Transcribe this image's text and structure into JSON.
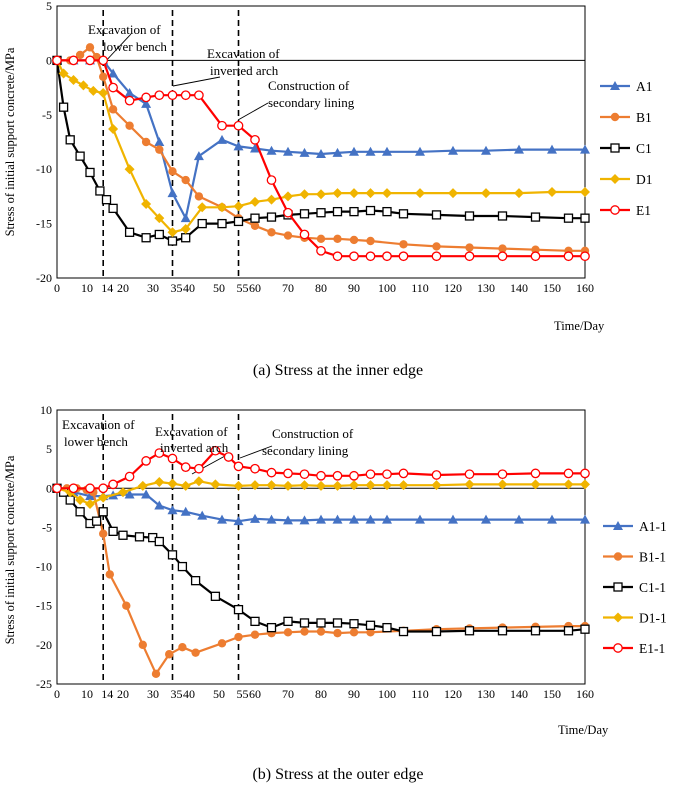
{
  "colors": {
    "A": "#4472C4",
    "B": "#ED7D31",
    "C": "#000000",
    "D": "#F0B400",
    "E": "#FF0000"
  },
  "chart_data": [
    {
      "type": "line",
      "caption": "(a) Stress at the inner edge",
      "ylabel": "Stress of initial support concrete/MPa",
      "xlabel": "Time/Day",
      "xlim": [
        0,
        160
      ],
      "ylim": [
        -20,
        5
      ],
      "xticks": [
        0,
        10,
        14,
        20,
        30,
        35,
        40,
        50,
        55,
        60,
        70,
        80,
        90,
        100,
        110,
        120,
        130,
        140,
        150,
        160
      ],
      "xtick_labels": [
        "0",
        "10",
        "14",
        "20",
        "30",
        "35",
        "40",
        "50",
        "55",
        "60",
        "70",
        "80",
        "90",
        "100",
        "110",
        "120",
        "130",
        "140",
        "150",
        "160"
      ],
      "yticks": [
        5,
        0,
        -5,
        -10,
        -15,
        -20
      ],
      "grid": false,
      "legend": "right",
      "vlines": [
        14,
        35,
        55
      ],
      "annotations": [
        {
          "lines": [
            "Excavation of",
            "lower bench"
          ]
        },
        {
          "lines": [
            "Excavation of",
            "inverted arch"
          ]
        },
        {
          "lines": [
            "Construction of",
            "secondary lining"
          ]
        }
      ],
      "series": [
        {
          "name": "A1",
          "color_key": "A",
          "marker": "triangle",
          "x": [
            0,
            5,
            10,
            14,
            17,
            22,
            27,
            31,
            35,
            39,
            43,
            50,
            55,
            60,
            65,
            70,
            75,
            80,
            85,
            90,
            95,
            100,
            110,
            120,
            130,
            140,
            150,
            160
          ],
          "y": [
            0,
            0,
            0,
            0,
            -1.2,
            -3.0,
            -4.0,
            -7.5,
            -12.2,
            -14.5,
            -8.8,
            -7.3,
            -7.9,
            -8.1,
            -8.3,
            -8.4,
            -8.5,
            -8.6,
            -8.5,
            -8.4,
            -8.4,
            -8.4,
            -8.4,
            -8.3,
            -8.3,
            -8.2,
            -8.2,
            -8.2
          ]
        },
        {
          "name": "B1",
          "color_key": "B",
          "marker": "circle",
          "x": [
            0,
            4,
            7,
            10,
            12,
            14,
            17,
            22,
            27,
            31,
            35,
            39,
            43,
            50,
            55,
            60,
            65,
            70,
            75,
            80,
            85,
            90,
            95,
            105,
            115,
            125,
            135,
            145,
            155,
            160
          ],
          "y": [
            0,
            0,
            0.5,
            1.2,
            0.3,
            -1.5,
            -4.5,
            -6.0,
            -7.5,
            -8.2,
            -10.2,
            -11.0,
            -12.5,
            -13.5,
            -14.5,
            -15.2,
            -15.8,
            -16.1,
            -16.3,
            -16.4,
            -16.4,
            -16.5,
            -16.6,
            -16.9,
            -17.1,
            -17.2,
            -17.3,
            -17.4,
            -17.5,
            -17.5
          ]
        },
        {
          "name": "C1",
          "color_key": "C",
          "marker": "square",
          "x": [
            0,
            2,
            4,
            7,
            10,
            13,
            15,
            17,
            22,
            27,
            31,
            35,
            39,
            44,
            50,
            55,
            60,
            65,
            70,
            75,
            80,
            85,
            90,
            95,
            100,
            105,
            115,
            125,
            135,
            145,
            155,
            160
          ],
          "y": [
            0,
            -4.3,
            -7.3,
            -8.8,
            -10.3,
            -12.0,
            -12.8,
            -13.6,
            -15.8,
            -16.3,
            -16.0,
            -16.6,
            -16.3,
            -15.0,
            -15.0,
            -14.8,
            -14.5,
            -14.4,
            -14.2,
            -14.1,
            -14.0,
            -13.9,
            -13.9,
            -13.8,
            -13.9,
            -14.1,
            -14.2,
            -14.3,
            -14.3,
            -14.4,
            -14.5,
            -14.5
          ]
        },
        {
          "name": "D1",
          "color_key": "D",
          "marker": "diamond",
          "x": [
            0,
            2,
            5,
            8,
            11,
            14,
            17,
            22,
            27,
            31,
            35,
            39,
            44,
            50,
            55,
            60,
            65,
            70,
            75,
            80,
            85,
            90,
            95,
            100,
            110,
            120,
            130,
            140,
            150,
            160
          ],
          "y": [
            0,
            -1.2,
            -1.8,
            -2.3,
            -2.8,
            -3.0,
            -6.3,
            -10.0,
            -13.2,
            -14.5,
            -15.8,
            -15.5,
            -13.5,
            -13.5,
            -13.4,
            -13.0,
            -12.8,
            -12.5,
            -12.3,
            -12.3,
            -12.2,
            -12.2,
            -12.2,
            -12.2,
            -12.2,
            -12.2,
            -12.2,
            -12.2,
            -12.1,
            -12.1
          ]
        },
        {
          "name": "E1",
          "color_key": "E",
          "marker": "circle-open",
          "x": [
            0,
            5,
            10,
            14,
            17,
            22,
            27,
            31,
            35,
            39,
            43,
            50,
            55,
            60,
            65,
            70,
            75,
            80,
            85,
            90,
            95,
            100,
            105,
            115,
            125,
            135,
            145,
            155,
            160
          ],
          "y": [
            0,
            0,
            0,
            0,
            -2.5,
            -3.7,
            -3.4,
            -3.2,
            -3.2,
            -3.2,
            -3.2,
            -6.0,
            -6.0,
            -7.3,
            -11.0,
            -14.0,
            -16.0,
            -17.5,
            -18.0,
            -18.0,
            -18.0,
            -18.0,
            -18.0,
            -18.0,
            -18.0,
            -18.0,
            -18.0,
            -18.0,
            -18.0
          ]
        }
      ]
    },
    {
      "type": "line",
      "caption": "(b) Stress at the outer edge",
      "ylabel": "Stress of initial support concrete/MPa",
      "xlabel": "Time/Day",
      "xlim": [
        0,
        160
      ],
      "ylim": [
        -25,
        10
      ],
      "xticks": [
        0,
        10,
        14,
        20,
        30,
        35,
        40,
        50,
        55,
        60,
        70,
        80,
        90,
        100,
        110,
        120,
        130,
        140,
        150,
        160
      ],
      "xtick_labels": [
        "0",
        "10",
        "14",
        "20",
        "30",
        "35",
        "40",
        "50",
        "55",
        "60",
        "70",
        "80",
        "90",
        "100",
        "110",
        "120",
        "130",
        "140",
        "150",
        "160"
      ],
      "yticks": [
        10,
        5,
        0,
        -5,
        -10,
        -15,
        -20,
        -25
      ],
      "grid": false,
      "legend": "right",
      "vlines": [
        14,
        35,
        55
      ],
      "annotations": [
        {
          "lines": [
            "Excavation of",
            "lower bench"
          ]
        },
        {
          "lines": [
            "Excavation of",
            "inverted arch"
          ]
        },
        {
          "lines": [
            "Construction of",
            "secondary lining"
          ]
        }
      ],
      "series": [
        {
          "name": "A1-1",
          "color_key": "A",
          "marker": "triangle",
          "x": [
            0,
            5,
            10,
            14,
            17,
            22,
            27,
            31,
            35,
            39,
            44,
            50,
            55,
            60,
            65,
            70,
            75,
            80,
            85,
            90,
            95,
            100,
            110,
            120,
            130,
            140,
            150,
            160
          ],
          "y": [
            0,
            -0.5,
            -1.0,
            -1.0,
            -0.9,
            -0.8,
            -0.8,
            -2.2,
            -2.8,
            -3.0,
            -3.5,
            -4.0,
            -4.2,
            -3.9,
            -4.0,
            -4.1,
            -4.1,
            -4.0,
            -4.0,
            -4.0,
            -4.0,
            -4.0,
            -4.0,
            -4.0,
            -4.0,
            -4.0,
            -4.0,
            -4.0
          ]
        },
        {
          "name": "B1-1",
          "color_key": "B",
          "marker": "circle",
          "x": [
            0,
            3,
            6,
            9,
            11,
            14,
            16,
            21,
            26,
            30,
            34,
            38,
            42,
            50,
            55,
            60,
            65,
            70,
            75,
            80,
            85,
            90,
            95,
            105,
            115,
            125,
            135,
            145,
            155,
            160
          ],
          "y": [
            0,
            0,
            0,
            -0.2,
            -0.5,
            -5.8,
            -11.0,
            -15.0,
            -20.0,
            -23.7,
            -21.2,
            -20.3,
            -21.0,
            -19.8,
            -19.0,
            -18.7,
            -18.5,
            -18.4,
            -18.3,
            -18.3,
            -18.5,
            -18.4,
            -18.4,
            -18.2,
            -18.0,
            -17.9,
            -17.8,
            -17.7,
            -17.6,
            -17.6
          ]
        },
        {
          "name": "C1-1",
          "color_key": "C",
          "marker": "square",
          "x": [
            0,
            2,
            4,
            7,
            10,
            12,
            14,
            17,
            20,
            25,
            29,
            31,
            35,
            38,
            42,
            48,
            55,
            60,
            65,
            70,
            75,
            80,
            85,
            90,
            95,
            100,
            105,
            115,
            125,
            135,
            145,
            155,
            160
          ],
          "y": [
            0,
            -0.5,
            -1.5,
            -3.0,
            -4.5,
            -4.2,
            -3.0,
            -5.5,
            -6.0,
            -6.2,
            -6.3,
            -6.8,
            -8.5,
            -10.0,
            -11.8,
            -13.8,
            -15.5,
            -17.0,
            -17.8,
            -17.0,
            -17.2,
            -17.2,
            -17.2,
            -17.3,
            -17.5,
            -17.8,
            -18.3,
            -18.3,
            -18.2,
            -18.2,
            -18.2,
            -18.2,
            -18.0
          ]
        },
        {
          "name": "D1-1",
          "color_key": "D",
          "marker": "diamond",
          "x": [
            0,
            4,
            7,
            10,
            14,
            20,
            26,
            31,
            35,
            39,
            43,
            48,
            55,
            60,
            65,
            70,
            75,
            80,
            85,
            90,
            95,
            100,
            105,
            115,
            125,
            135,
            145,
            155,
            160
          ],
          "y": [
            0,
            -0.5,
            -1.5,
            -2.0,
            -1.2,
            -0.5,
            0.3,
            0.8,
            0.6,
            0.3,
            0.9,
            0.5,
            0.3,
            0.4,
            0.4,
            0.3,
            0.4,
            0.3,
            0.3,
            0.4,
            0.4,
            0.4,
            0.4,
            0.4,
            0.5,
            0.5,
            0.5,
            0.5,
            0.5
          ]
        },
        {
          "name": "E1-1",
          "color_key": "E",
          "marker": "circle-open",
          "x": [
            0,
            5,
            10,
            14,
            17,
            22,
            27,
            31,
            35,
            39,
            43,
            48,
            52,
            55,
            60,
            65,
            70,
            75,
            80,
            85,
            90,
            95,
            100,
            105,
            115,
            125,
            135,
            145,
            155,
            160
          ],
          "y": [
            0,
            0,
            0,
            0,
            0.5,
            1.5,
            3.5,
            4.5,
            3.8,
            2.7,
            2.5,
            4.8,
            4.0,
            2.8,
            2.5,
            2.0,
            1.9,
            1.8,
            1.6,
            1.6,
            1.6,
            1.8,
            1.8,
            1.9,
            1.7,
            1.8,
            1.8,
            1.9,
            1.9,
            1.9
          ]
        }
      ]
    }
  ]
}
